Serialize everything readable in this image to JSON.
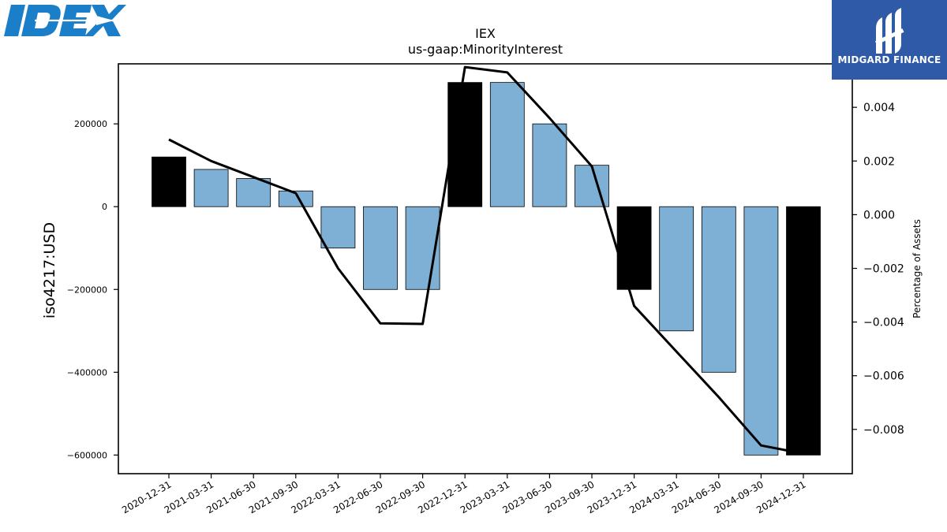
{
  "logos": {
    "left_brand": "IDEX",
    "right_brand": "MIDGARD FINANCE"
  },
  "colors": {
    "bar_normal": "#7eb0d5",
    "bar_year_end": "#000000",
    "line": "#000000",
    "idex_blue": "#1a7ec9",
    "midgard_bg": "#2e5aa8"
  },
  "chart_data": {
    "type": "bar",
    "title": "IEX",
    "subtitle": "us-gaap:MinorityInterest",
    "ylabel": "iso4217:USD",
    "y2label": "Percentage of Assets",
    "ylim": [
      -645000,
      345000
    ],
    "y2lim": [
      -0.00965,
      0.00562
    ],
    "yticks": [
      200000,
      0,
      -200000,
      -400000,
      -600000
    ],
    "ytick_labels": [
      "200000",
      "0",
      "−200000",
      "−400000",
      "−600000"
    ],
    "y2ticks": [
      0.004,
      0.002,
      0.0,
      -0.002,
      -0.004,
      -0.006,
      -0.008
    ],
    "y2tick_labels": [
      "0.004",
      "0.002",
      "0.000",
      "−0.002",
      "−0.004",
      "−0.006",
      "−0.008"
    ],
    "categories": [
      "2020-12-31",
      "2021-03-31",
      "2021-06-30",
      "2021-09-30",
      "2022-03-31",
      "2022-06-30",
      "2022-09-30",
      "2022-12-31",
      "2023-03-31",
      "2023-06-30",
      "2023-09-30",
      "2023-12-31",
      "2024-03-31",
      "2024-06-30",
      "2024-09-30",
      "2024-12-31"
    ],
    "values": [
      120000,
      90000,
      68000,
      38000,
      -100000,
      -200000,
      -200000,
      300000,
      300000,
      200000,
      100000,
      -200000,
      -300000,
      -400000,
      -600000,
      -600000
    ],
    "year_end": [
      true,
      false,
      false,
      false,
      false,
      false,
      false,
      true,
      false,
      false,
      false,
      true,
      false,
      false,
      false,
      true
    ],
    "pct_of_assets": [
      0.0028,
      0.002,
      0.0014,
      0.0008,
      -0.002,
      -0.00405,
      -0.00407,
      0.0055,
      0.0053,
      0.0036,
      0.0018,
      -0.0034,
      -0.0051,
      -0.0068,
      -0.0086,
      -0.0089
    ]
  }
}
